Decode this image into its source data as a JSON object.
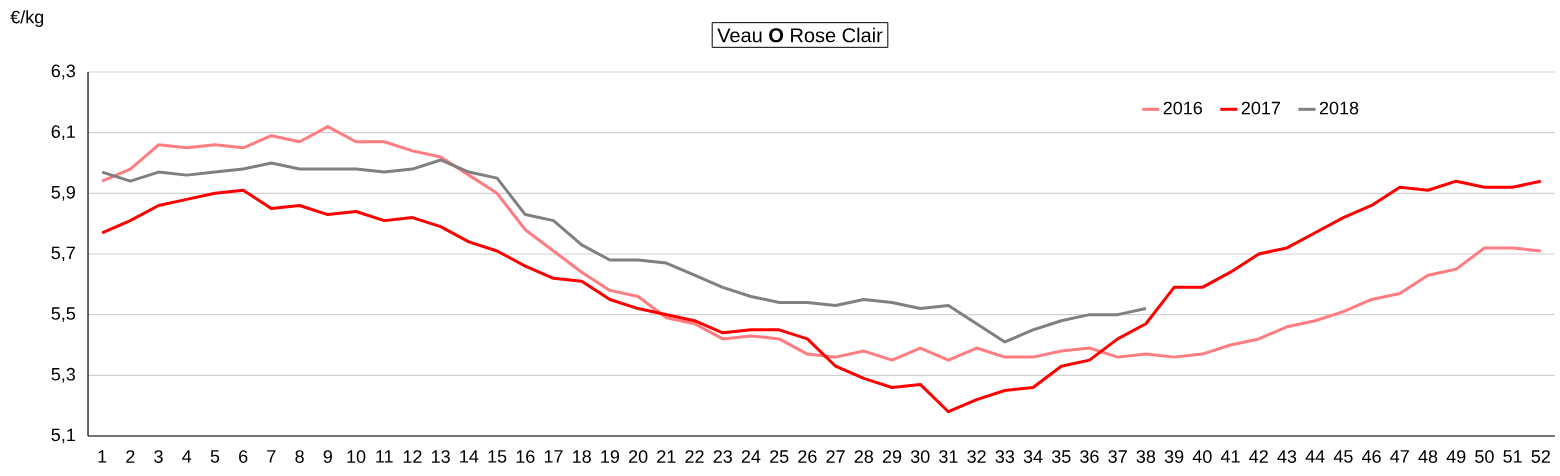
{
  "chart_data": {
    "type": "line",
    "title": "Veau **O** Rose Clair",
    "ylabel": "€/kg",
    "categories": [
      "1",
      "2",
      "3",
      "4",
      "5",
      "6",
      "7",
      "8",
      "9",
      "10",
      "11",
      "12",
      "13",
      "14",
      "15",
      "16",
      "17",
      "18",
      "19",
      "20",
      "21",
      "22",
      "23",
      "24",
      "25",
      "26",
      "27",
      "28",
      "29",
      "30",
      "31",
      "32",
      "33",
      "34",
      "35",
      "36",
      "37",
      "38",
      "39",
      "40",
      "41",
      "42",
      "43",
      "44",
      "45",
      "46",
      "47",
      "48",
      "49",
      "50",
      "51",
      "52"
    ],
    "series": [
      {
        "name": "2016",
        "color": "#ff7c80",
        "values": [
          5.94,
          5.98,
          6.06,
          6.05,
          6.06,
          6.05,
          6.09,
          6.07,
          6.12,
          6.07,
          6.07,
          6.04,
          6.02,
          5.96,
          5.9,
          5.78,
          5.71,
          5.64,
          5.58,
          5.56,
          5.49,
          5.47,
          5.42,
          5.43,
          5.42,
          5.37,
          5.36,
          5.38,
          5.35,
          5.39,
          5.35,
          5.39,
          5.36,
          5.36,
          5.38,
          5.39,
          5.36,
          5.37,
          5.36,
          5.37,
          5.4,
          5.42,
          5.46,
          5.48,
          5.51,
          5.55,
          5.57,
          5.63,
          5.65,
          5.72,
          5.72,
          5.71
        ]
      },
      {
        "name": "2017",
        "color": "#ff0000",
        "values": [
          5.77,
          5.81,
          5.86,
          5.88,
          5.9,
          5.91,
          5.85,
          5.86,
          5.83,
          5.84,
          5.81,
          5.82,
          5.79,
          5.74,
          5.71,
          5.66,
          5.62,
          5.61,
          5.55,
          5.52,
          5.5,
          5.48,
          5.44,
          5.45,
          5.45,
          5.42,
          5.33,
          5.29,
          5.26,
          5.27,
          5.18,
          5.22,
          5.25,
          5.26,
          5.33,
          5.35,
          5.42,
          5.47,
          5.59,
          5.59,
          5.64,
          5.7,
          5.72,
          5.77,
          5.82,
          5.86,
          5.92,
          5.91,
          5.94,
          5.92,
          5.92,
          5.94
        ]
      },
      {
        "name": "2018",
        "color": "#808080",
        "values": [
          5.97,
          5.94,
          5.97,
          5.96,
          5.97,
          5.98,
          6.0,
          5.98,
          5.98,
          5.98,
          5.97,
          5.98,
          6.01,
          5.97,
          5.95,
          5.83,
          5.81,
          5.73,
          5.68,
          5.68,
          5.67,
          5.63,
          5.59,
          5.56,
          5.54,
          5.54,
          5.53,
          5.55,
          5.54,
          5.52,
          5.53,
          5.47,
          5.41,
          5.45,
          5.48,
          5.5,
          5.5,
          5.52,
          null,
          null,
          null,
          null,
          null,
          null,
          null,
          null,
          null,
          null,
          null,
          null,
          null,
          null
        ]
      }
    ],
    "ylim": [
      5.1,
      6.3
    ],
    "yticks": [
      {
        "value": 5.1,
        "label": "5,1"
      },
      {
        "value": 5.3,
        "label": "5,3"
      },
      {
        "value": 5.5,
        "label": "5,5"
      },
      {
        "value": 5.7,
        "label": "5,7"
      },
      {
        "value": 5.9,
        "label": "5,9"
      },
      {
        "value": 6.1,
        "label": "6,1"
      },
      {
        "value": 6.3,
        "label": "6,3"
      }
    ],
    "grid": "y",
    "legend": "top right",
    "marker": "none",
    "line_style": "solid"
  }
}
